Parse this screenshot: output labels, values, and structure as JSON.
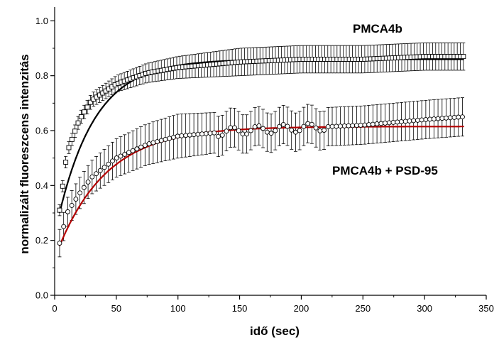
{
  "chart_data": {
    "type": "scatter",
    "xlabel": "idő (sec)",
    "ylabel": "normalizált fluoreszcens intenzitás",
    "xlim": [
      0,
      350
    ],
    "ylim": [
      0,
      1.05
    ],
    "x_ticks": [
      "0",
      "50",
      "100",
      "150",
      "200",
      "250",
      "300",
      "350"
    ],
    "y_ticks": [
      "0.0",
      "0.2",
      "0.4",
      "0.6",
      "0.8",
      "1.0"
    ],
    "grid": false,
    "series": [
      {
        "name": "PMCA4b",
        "marker": "square",
        "color": "#000000",
        "fit_color": "#000000",
        "x_start": 4,
        "x_end": 332,
        "x_step": 2.5,
        "fit": {
          "model": "single exponential",
          "plateau": 0.86,
          "y0": 0.3,
          "tau": 30
        },
        "points_sample": [
          [
            4,
            0.31
          ],
          [
            10,
            0.52
          ],
          [
            20,
            0.64
          ],
          [
            30,
            0.71
          ],
          [
            50,
            0.77
          ],
          [
            75,
            0.81
          ],
          [
            100,
            0.83
          ],
          [
            150,
            0.85
          ],
          [
            200,
            0.86
          ],
          [
            250,
            0.86
          ],
          [
            300,
            0.87
          ],
          [
            330,
            0.87
          ]
        ],
        "error_sample": [
          [
            4,
            0.02
          ],
          [
            50,
            0.03
          ],
          [
            100,
            0.04
          ],
          [
            150,
            0.05
          ],
          [
            200,
            0.05
          ],
          [
            300,
            0.05
          ]
        ]
      },
      {
        "name": "PMCA4b + PSD-95",
        "marker": "circle",
        "color": "#000000",
        "fit_color": "#b40000",
        "x_start": 4,
        "x_end": 332,
        "x_step": 3.3,
        "fit": {
          "model": "single exponential",
          "plateau": 0.615,
          "y0": 0.18,
          "tau": 40
        },
        "points_sample": [
          [
            4,
            0.19
          ],
          [
            10,
            0.3
          ],
          [
            20,
            0.37
          ],
          [
            30,
            0.43
          ],
          [
            50,
            0.5
          ],
          [
            75,
            0.55
          ],
          [
            100,
            0.58
          ],
          [
            150,
            0.6
          ],
          [
            200,
            0.61
          ],
          [
            250,
            0.62
          ],
          [
            300,
            0.64
          ],
          [
            330,
            0.65
          ]
        ],
        "error_sample": [
          [
            4,
            0.05
          ],
          [
            50,
            0.07
          ],
          [
            100,
            0.08
          ],
          [
            150,
            0.07
          ],
          [
            200,
            0.07
          ],
          [
            300,
            0.07
          ]
        ]
      }
    ]
  }
}
